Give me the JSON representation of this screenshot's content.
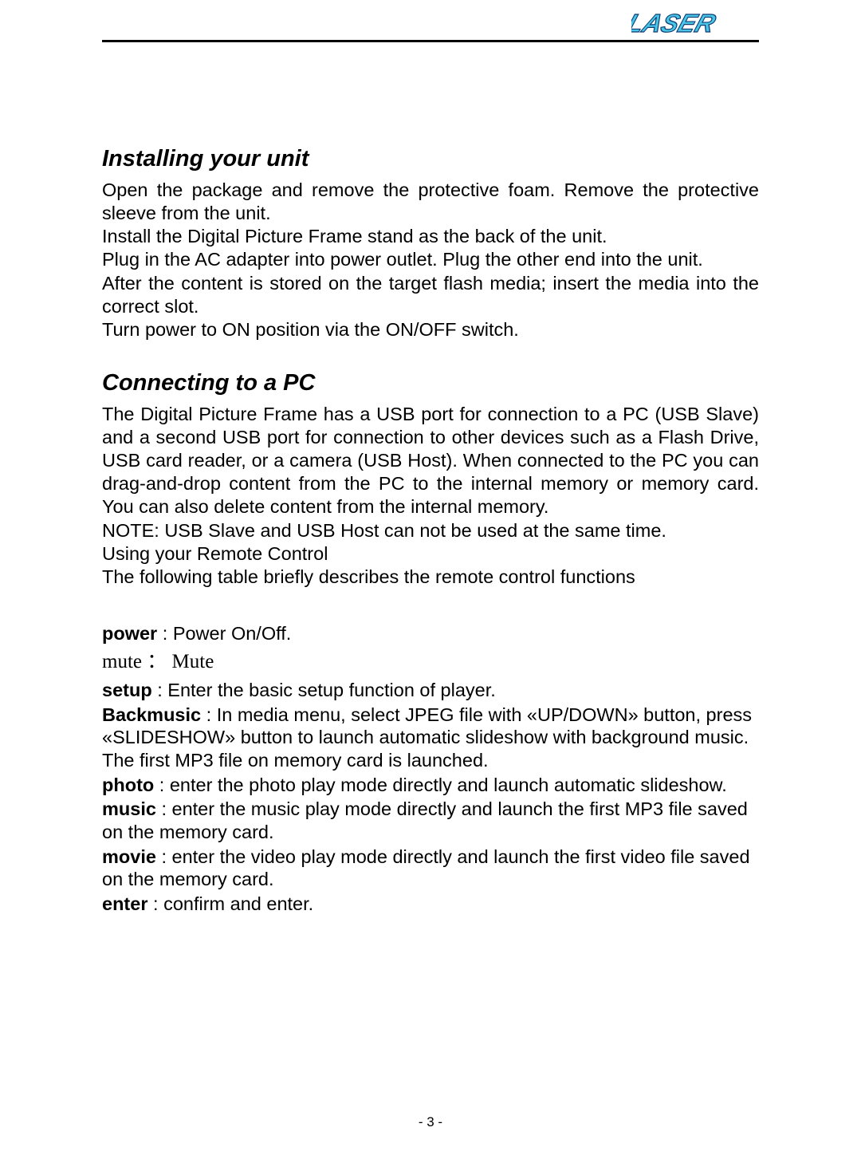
{
  "logo": {
    "text": "LASER",
    "fill_color": "#49c5e6",
    "stroke_color": "#0b3b75"
  },
  "sections": {
    "installing": {
      "heading": "Installing your unit",
      "paragraphs": [
        "Open the package and remove the protective foam. Remove the protective sleeve from the unit.",
        "Install the Digital Picture Frame stand as the back of the unit.",
        "Plug in the AC adapter into power outlet. Plug the other end into the unit.",
        "After the content is stored on the target flash media; insert the media into the correct slot.",
        "Turn power to ON position via the ON/OFF switch."
      ]
    },
    "connecting": {
      "heading": "Connecting to a PC",
      "paragraphs": [
        "The Digital Picture Frame has a USB port for connection to a PC (USB Slave) and a second USB port for connection to other devices such as a Flash Drive, USB card reader, or a camera (USB Host). When connected to the PC you can drag-and-drop content from the PC to the internal memory or memory card. You can also delete content from the internal memory.",
        "NOTE: USB Slave and USB Host can not be used at the same time.",
        "Using your Remote Control",
        "The following table briefly describes the remote control functions"
      ]
    }
  },
  "functions": {
    "power": {
      "label": "power",
      "sep": " : ",
      "desc": "Power On/Off."
    },
    "mute": {
      "label": "mute",
      "sep": " ： ",
      "desc": "Mute"
    },
    "setup": {
      "label": "setup",
      "sep": " : ",
      "desc": "Enter the basic setup function of player."
    },
    "backmusic": {
      "label": "Backmusic",
      "sep": " : ",
      "desc": "In media menu, select JPEG file with «UP/DOWN» button, press «SLIDESHOW» button to launch automatic slideshow with background music. The first MP3 file on memory card is launched."
    },
    "photo": {
      "label": "photo",
      "sep": " : ",
      "desc": "enter the photo play mode directly and launch automatic slideshow."
    },
    "music": {
      "label": "music",
      "sep": " : ",
      "desc": "enter the music play mode directly and launch the first MP3 file saved on the memory card."
    },
    "movie": {
      "label": "movie",
      "sep": " : ",
      "desc": "enter the video play mode directly and launch the first video file saved on the memory card."
    },
    "enter": {
      "label": "enter",
      "sep": " : ",
      "desc": "confirm and enter."
    }
  },
  "page_number": "- 3 -"
}
